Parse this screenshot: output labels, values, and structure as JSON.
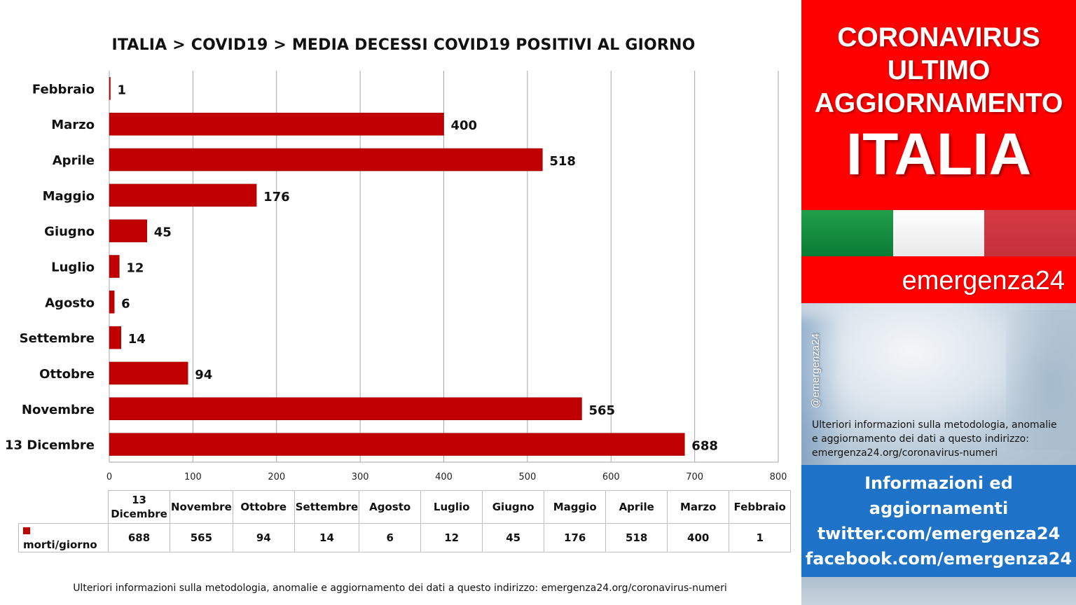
{
  "chart_data": {
    "type": "bar",
    "orientation": "horizontal",
    "title": "ITALIA >  COVID19 > MEDIA DECESSI COVID19 POSITIVI AL GIORNO",
    "categories": [
      "Febbraio",
      "Marzo",
      "Aprile",
      "Maggio",
      "Giugno",
      "Luglio",
      "Agosto",
      "Settembre",
      "Ottobre",
      "Novembre",
      "13 Dicembre"
    ],
    "series": [
      {
        "name": "morti/giorno",
        "values": [
          1,
          400,
          518,
          176,
          45,
          12,
          6,
          14,
          94,
          565,
          688
        ]
      }
    ],
    "xlim": [
      0,
      800
    ],
    "xticks": [
      0,
      100,
      200,
      300,
      400,
      500,
      600,
      700,
      800
    ],
    "grid": "vertical",
    "bar_color": "#c00000",
    "data_labels": true
  },
  "table": {
    "headers": [
      "13 Dicembre",
      "Novembre",
      "Ottobre",
      "Settembre",
      "Agosto",
      "Luglio",
      "Giugno",
      "Maggio",
      "Aprile",
      "Marzo",
      "Febbraio"
    ],
    "series_label": "morti/giorno",
    "values": [
      "688",
      "565",
      "94",
      "14",
      "6",
      "12",
      "45",
      "176",
      "518",
      "400",
      "1"
    ]
  },
  "footnote": "Ulteriori informazioni sulla metodologia, anomalie e aggiornamento dei dati a questo indirizzo: emergenza24.org/coronavirus-numeri",
  "side_panel": {
    "header_line1": "CORONAVIRUS",
    "header_line2": "ULTIMO",
    "header_line3": "AGGIORNAMENTO",
    "header_country": "ITALIA",
    "brand": "emergenza24",
    "handle": "@emergenza24",
    "photo_text_line1": "Ulteriori informazioni sulla metodologia, anomalie",
    "photo_text_line2": "e aggiornamento dei dati a questo indirizzo:",
    "photo_text_line3": "emergenza24.org/coronavirus-numeri",
    "info_line1": "Informazioni ed",
    "info_line2": "aggiornamenti",
    "info_line3": "twitter.com/emergenza24",
    "info_line4": "facebook.com/emergenza24"
  },
  "colors": {
    "bar": "#c00000",
    "header_red": "#ff0000",
    "info_blue": "#1e73c8",
    "flag_green": "#0b7c35",
    "flag_white": "#ffffff",
    "flag_red": "#c5303a"
  }
}
